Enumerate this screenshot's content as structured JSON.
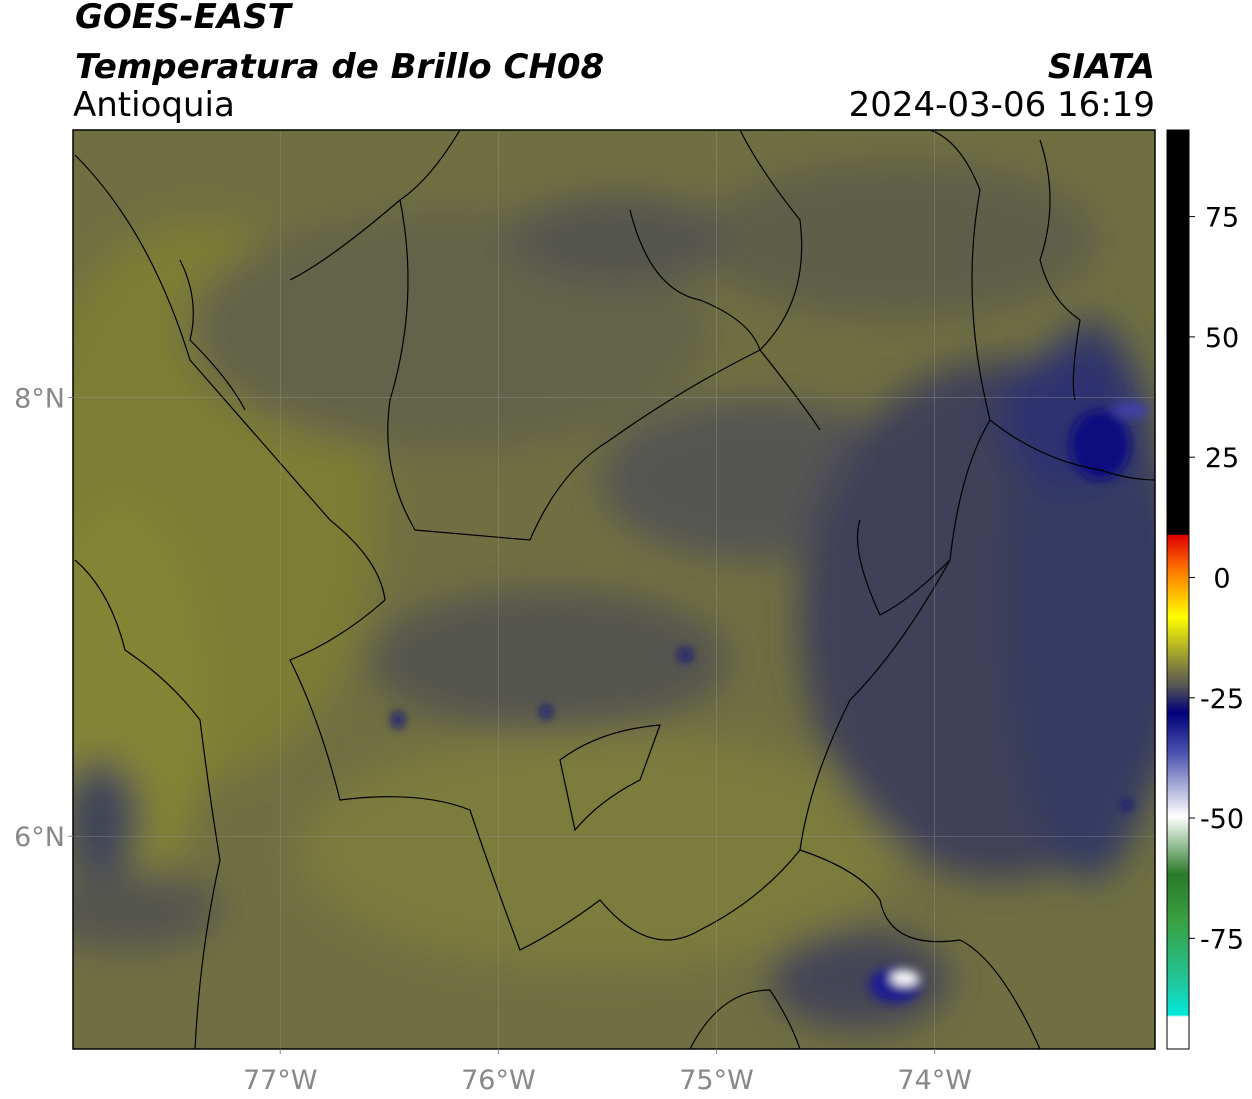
{
  "header": {
    "title": "GOES-EAST",
    "subtitle": "Temperatura de Brillo CH08",
    "region": "Antioquia",
    "source": "SIATA",
    "datetime": "2024-03-06 16:19"
  },
  "map": {
    "lon_range": [
      -77.95,
      -72.99
    ],
    "lat_range": [
      5.03,
      9.22
    ],
    "lon_ticks": [
      {
        "value": -77,
        "label": "77°W"
      },
      {
        "value": -76,
        "label": "76°W"
      },
      {
        "value": -75,
        "label": "75°W"
      },
      {
        "value": -74,
        "label": "74°W"
      }
    ],
    "lat_ticks": [
      {
        "value": 8,
        "label": "8°N"
      },
      {
        "value": 6,
        "label": "6°N"
      }
    ]
  },
  "colorbar": {
    "range": [
      -98,
      93
    ],
    "ticks": [
      75,
      50,
      25,
      0,
      -25,
      -50,
      -75
    ]
  }
}
